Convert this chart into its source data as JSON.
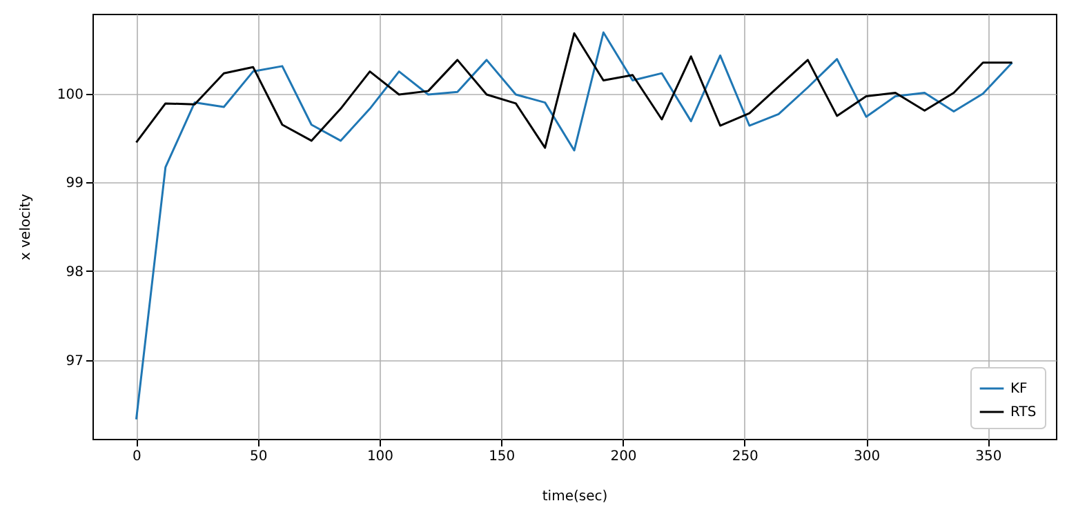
{
  "chart_data": {
    "type": "line",
    "xlabel": "time(sec)",
    "ylabel": "x velocity",
    "x": [
      0,
      12,
      24,
      36,
      48,
      60,
      72,
      84,
      96,
      108,
      120,
      132,
      144,
      156,
      168,
      180,
      192,
      204,
      216,
      228,
      240,
      252,
      264,
      276,
      288,
      300,
      312,
      324,
      336,
      348,
      360
    ],
    "series": [
      {
        "name": "KF",
        "color": "#1f77b4",
        "values": [
          96.33,
          99.17,
          99.9,
          99.85,
          100.25,
          100.31,
          99.65,
          99.47,
          99.83,
          100.25,
          99.99,
          100.02,
          100.38,
          99.99,
          99.9,
          99.36,
          100.69,
          100.15,
          100.23,
          99.69,
          100.43,
          99.64,
          99.77,
          100.07,
          100.39,
          99.74,
          99.97,
          100.01,
          99.8,
          100.0,
          100.35
        ]
      },
      {
        "name": "RTS",
        "color": "#000000",
        "values": [
          99.45,
          99.89,
          99.88,
          100.23,
          100.3,
          99.65,
          99.47,
          99.83,
          100.25,
          99.99,
          100.03,
          100.38,
          99.99,
          99.89,
          99.39,
          100.68,
          100.15,
          100.21,
          99.71,
          100.42,
          99.64,
          99.78,
          100.08,
          100.38,
          99.75,
          99.97,
          100.01,
          99.81,
          100.01,
          100.35,
          100.35
        ]
      }
    ],
    "xlim": [
      -18,
      378
    ],
    "xticks": [
      0,
      50,
      100,
      150,
      200,
      250,
      300,
      350
    ],
    "ylim": [
      96.11,
      100.9
    ],
    "yticks": [
      97,
      98,
      99,
      100
    ],
    "grid": true,
    "legend": "bottom right",
    "line_style": "solid"
  }
}
